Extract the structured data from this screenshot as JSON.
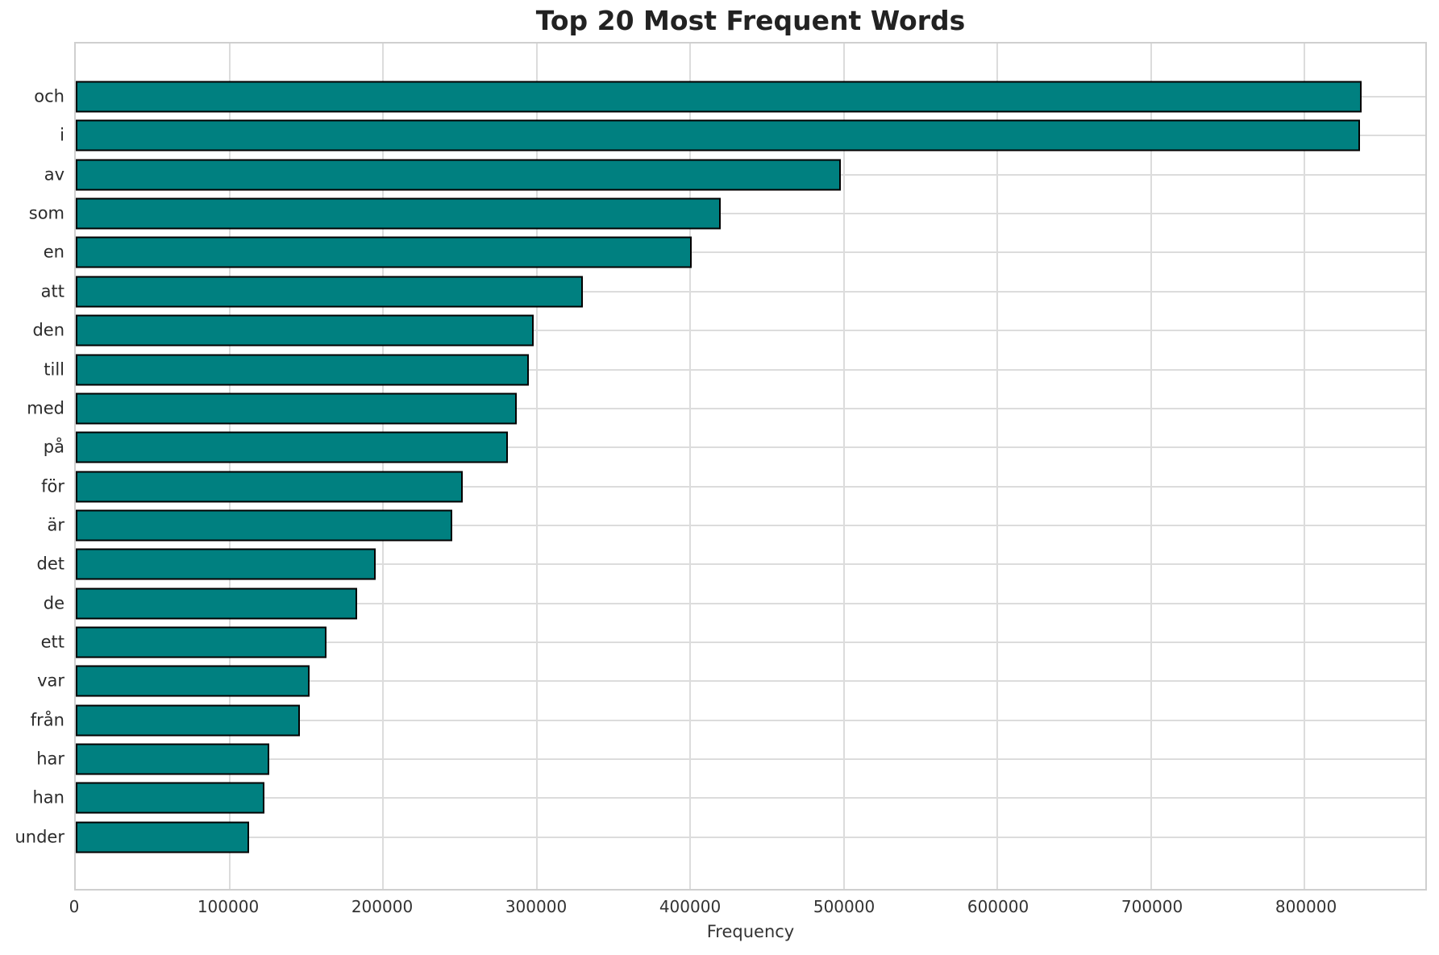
{
  "chart_data": {
    "type": "bar",
    "orientation": "horizontal",
    "title": "Top 20 Most Frequent Words",
    "xlabel": "Frequency",
    "ylabel": "",
    "categories": [
      "och",
      "i",
      "av",
      "som",
      "en",
      "att",
      "den",
      "till",
      "med",
      "på",
      "för",
      "är",
      "det",
      "de",
      "ett",
      "var",
      "från",
      "har",
      "han",
      "under"
    ],
    "values": [
      837000,
      836000,
      498000,
      420000,
      401000,
      330000,
      298000,
      295000,
      287000,
      281000,
      252000,
      245000,
      195000,
      183000,
      163000,
      152000,
      146000,
      126000,
      123000,
      113000
    ],
    "xticks": [
      0,
      100000,
      200000,
      300000,
      400000,
      500000,
      600000,
      700000,
      800000
    ],
    "xtick_labels": [
      "0",
      "100000",
      "200000",
      "300000",
      "400000",
      "500000",
      "600000",
      "700000",
      "800000"
    ],
    "xlim": [
      0,
      878500
    ],
    "grid": "both",
    "legend_position": "none",
    "colors": {
      "bar_fill": "#008080",
      "bar_edge": "#000000",
      "grid": "#dcdcdc",
      "spine": "#cfcfcf",
      "tick_text": "#333333",
      "title_text": "#222222"
    }
  }
}
